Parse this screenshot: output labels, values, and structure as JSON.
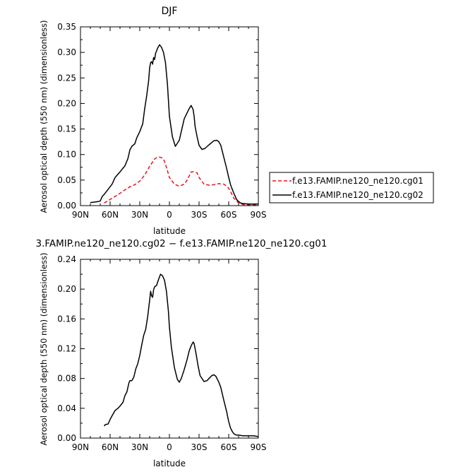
{
  "colors": {
    "cg01": "#e8141e",
    "cg02": "#000000"
  },
  "chart_data": [
    {
      "type": "line",
      "title": "DJF",
      "xlabel": "latitude",
      "ylabel": "Aerosol optical depth (550 nm) (dimensionless)",
      "xlim": [
        90,
        -90
      ],
      "ylim": [
        0,
        0.35
      ],
      "x_ticks": [
        90,
        60,
        30,
        0,
        -30,
        -60,
        -90
      ],
      "x_tick_labels": [
        "90N",
        "60N",
        "30N",
        "0",
        "30S",
        "60S",
        "90S"
      ],
      "y_ticks": [
        0,
        0.05,
        0.1,
        0.15,
        0.2,
        0.25,
        0.3,
        0.35
      ],
      "y_tick_labels": [
        "0.00",
        "0.05",
        "0.10",
        "0.15",
        "0.20",
        "0.25",
        "0.30",
        "0.35"
      ],
      "legend_placement": "right-outside",
      "series": [
        {
          "name": "f.e13.FAMIP.ne120_ne120.cg01",
          "color": "#e8141e",
          "style": "dashed",
          "x": [
            66,
            60,
            55,
            50,
            45,
            40,
            35,
            30,
            25,
            20,
            15,
            13,
            10,
            7,
            5,
            3,
            0,
            -5,
            -10,
            -15,
            -18,
            -20,
            -22,
            -25,
            -28,
            -30,
            -35,
            -40,
            -45,
            -50,
            -55,
            -58,
            -60,
            -62,
            -65,
            -70,
            -75,
            -80,
            -85,
            -90
          ],
          "y": [
            0.005,
            0.012,
            0.018,
            0.024,
            0.031,
            0.037,
            0.041,
            0.048,
            0.06,
            0.077,
            0.091,
            0.094,
            0.095,
            0.093,
            0.087,
            0.075,
            0.055,
            0.042,
            0.038,
            0.042,
            0.05,
            0.058,
            0.066,
            0.066,
            0.064,
            0.055,
            0.042,
            0.04,
            0.041,
            0.043,
            0.042,
            0.038,
            0.034,
            0.027,
            0.015,
            0.005,
            0.002,
            0.0015,
            0.001,
            0.001
          ]
        },
        {
          "name": "f.e13.FAMIP.ne120_ne120.cg02",
          "color": "#000000",
          "style": "solid",
          "x": [
            80,
            72,
            70,
            68,
            66,
            62,
            58,
            55,
            50,
            45,
            42,
            40,
            38,
            35,
            33,
            30,
            27,
            25,
            23,
            21,
            20,
            19,
            18,
            17,
            16,
            15,
            14,
            12,
            10,
            8,
            6,
            4,
            2,
            0,
            -3,
            -6,
            -10,
            -12,
            -15,
            -18,
            -20,
            -22,
            -24,
            -25,
            -26,
            -28,
            -30,
            -33,
            -36,
            -40,
            -45,
            -48,
            -50,
            -52,
            -55,
            -58,
            -60,
            -62,
            -65,
            -68,
            -70,
            -72,
            -75,
            -80,
            -85,
            -90
          ],
          "y": [
            0.006,
            0.008,
            0.009,
            0.018,
            0.022,
            0.032,
            0.042,
            0.055,
            0.066,
            0.078,
            0.092,
            0.109,
            0.116,
            0.121,
            0.133,
            0.145,
            0.16,
            0.19,
            0.215,
            0.245,
            0.27,
            0.28,
            0.282,
            0.277,
            0.29,
            0.286,
            0.298,
            0.308,
            0.315,
            0.31,
            0.3,
            0.28,
            0.238,
            0.175,
            0.135,
            0.116,
            0.128,
            0.145,
            0.17,
            0.182,
            0.19,
            0.196,
            0.188,
            0.175,
            0.155,
            0.135,
            0.118,
            0.11,
            0.112,
            0.119,
            0.127,
            0.128,
            0.125,
            0.118,
            0.095,
            0.072,
            0.055,
            0.04,
            0.025,
            0.012,
            0.008,
            0.005,
            0.004,
            0.003,
            0.003,
            0.003
          ]
        }
      ]
    },
    {
      "type": "line",
      "title": "3.FAMIP.ne120_ne120.cg02 − f.e13.FAMIP.ne120_ne120.cg01",
      "xlabel": "latitude",
      "ylabel": "Aerosol optical depth (550 nm) (dimensionless)",
      "xlim": [
        90,
        -90
      ],
      "ylim": [
        0,
        0.24
      ],
      "x_ticks": [
        90,
        60,
        30,
        0,
        -30,
        -60,
        -90
      ],
      "x_tick_labels": [
        "90N",
        "60N",
        "30N",
        "0",
        "30S",
        "60S",
        "90S"
      ],
      "y_ticks": [
        0,
        0.04,
        0.08,
        0.12,
        0.16,
        0.2,
        0.24
      ],
      "y_tick_labels": [
        "0.00",
        "0.04",
        "0.08",
        "0.12",
        "0.16",
        "0.20",
        "0.24"
      ],
      "series": [
        {
          "color": "#000000",
          "style": "solid",
          "x": [
            66,
            65,
            62,
            60,
            58,
            55,
            52,
            50,
            47,
            45,
            43,
            41,
            40,
            38,
            36,
            34,
            32,
            30,
            28,
            26,
            24,
            22,
            20,
            19,
            18,
            17,
            16,
            15,
            13,
            11,
            9,
            7,
            5,
            3,
            1,
            0,
            -2,
            -5,
            -8,
            -10,
            -12,
            -15,
            -18,
            -20,
            -22,
            -24,
            -25,
            -27,
            -29,
            -31,
            -35,
            -38,
            -40,
            -43,
            -45,
            -47,
            -50,
            -52,
            -55,
            -58,
            -60,
            -62,
            -64,
            -66,
            -68,
            -70,
            -72,
            -74,
            -76,
            -80,
            -85,
            -90
          ],
          "y": [
            0.016,
            0.018,
            0.019,
            0.025,
            0.03,
            0.037,
            0.04,
            0.043,
            0.048,
            0.057,
            0.062,
            0.074,
            0.077,
            0.077,
            0.082,
            0.093,
            0.1,
            0.111,
            0.125,
            0.138,
            0.146,
            0.163,
            0.185,
            0.197,
            0.191,
            0.189,
            0.199,
            0.203,
            0.205,
            0.213,
            0.22,
            0.218,
            0.212,
            0.197,
            0.17,
            0.149,
            0.122,
            0.095,
            0.079,
            0.075,
            0.08,
            0.092,
            0.106,
            0.117,
            0.124,
            0.129,
            0.127,
            0.113,
            0.097,
            0.084,
            0.076,
            0.077,
            0.08,
            0.084,
            0.085,
            0.083,
            0.075,
            0.068,
            0.051,
            0.035,
            0.022,
            0.013,
            0.008,
            0.005,
            0.004,
            0.004,
            0.0035,
            0.003,
            0.003,
            0.003,
            0.003,
            0.002
          ]
        }
      ]
    }
  ]
}
